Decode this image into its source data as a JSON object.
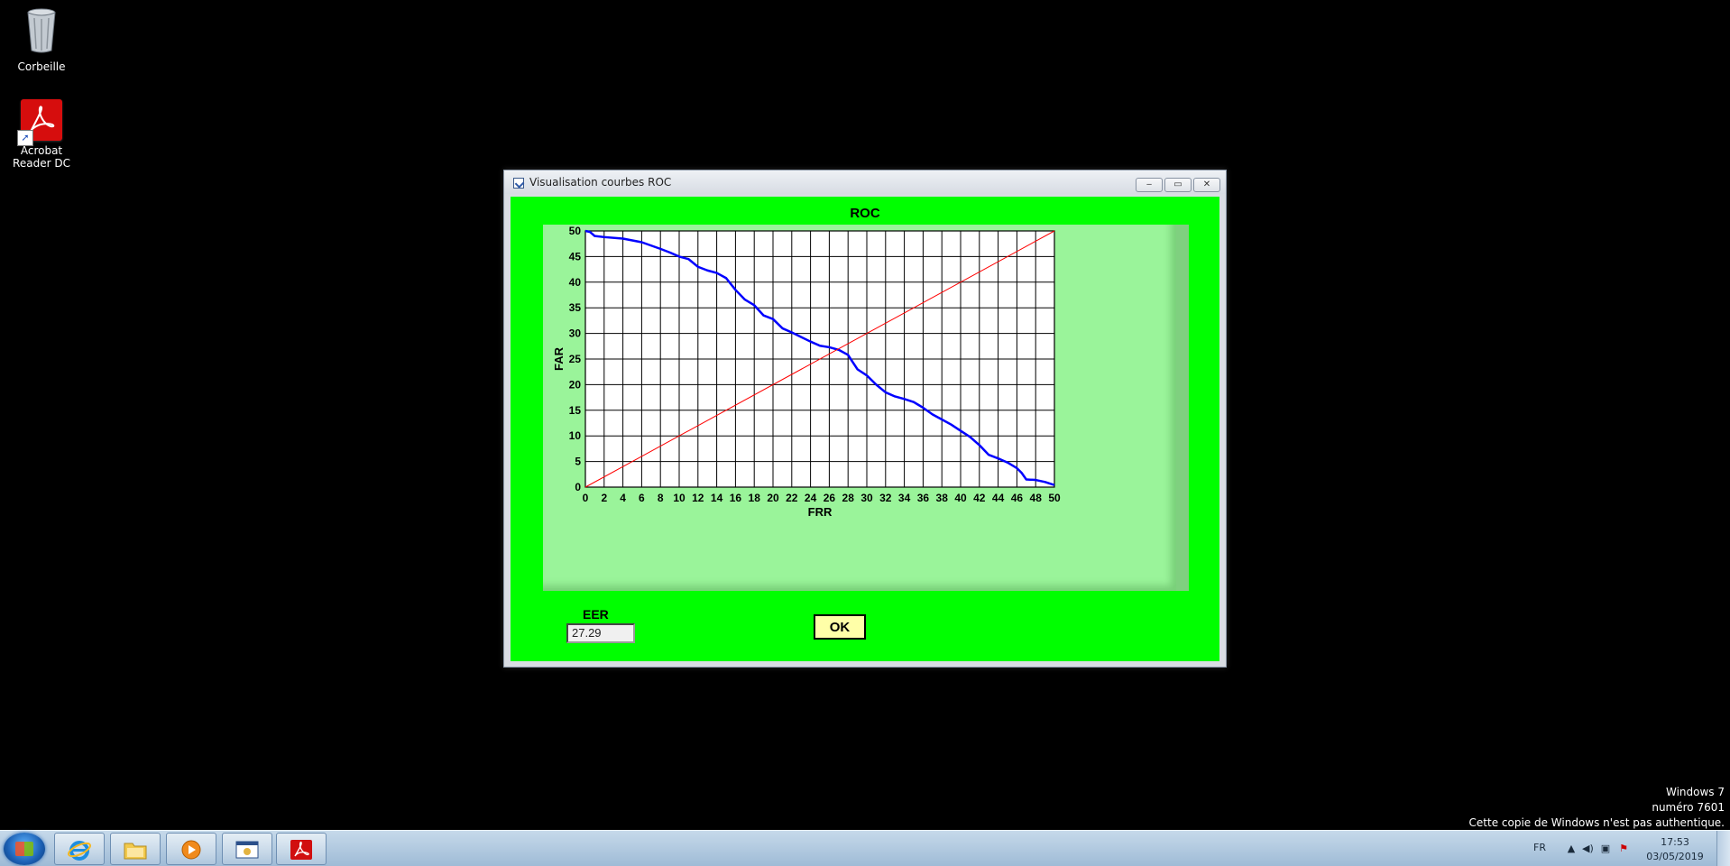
{
  "desktop": {
    "icons": [
      {
        "label": "Corbeille",
        "icon": "recycle-bin-icon"
      },
      {
        "label": "Acrobat Reader DC",
        "icon": "acrobat-reader-icon"
      }
    ]
  },
  "window": {
    "title": "Visualisation courbes ROC",
    "controls": {
      "minimize": "‒",
      "maximize": "▭",
      "close": "✕"
    },
    "background_color": "#00ff00",
    "plot_panel_color": "#9af49a"
  },
  "chart_data": {
    "type": "line",
    "title": "ROC",
    "xlabel": "FRR",
    "ylabel": "FAR",
    "xlim": [
      0,
      50
    ],
    "ylim": [
      0,
      50
    ],
    "xticks": [
      0,
      2,
      4,
      6,
      8,
      10,
      12,
      14,
      16,
      18,
      20,
      22,
      24,
      26,
      28,
      30,
      32,
      34,
      36,
      38,
      40,
      42,
      44,
      46,
      48,
      50
    ],
    "yticks": [
      0,
      5,
      10,
      15,
      20,
      25,
      30,
      35,
      40,
      45,
      50
    ],
    "grid": true,
    "series": [
      {
        "color": "#0000ff",
        "x": [
          0,
          0.5,
          1,
          2,
          4,
          6,
          8,
          9,
          10,
          11,
          12,
          13,
          14,
          15,
          16,
          17,
          18,
          19,
          20,
          21,
          22,
          23,
          24,
          25,
          26,
          27,
          28,
          28.5,
          29,
          30,
          31,
          32,
          33,
          34,
          35,
          36,
          37,
          38,
          39,
          40,
          41,
          42,
          43,
          44,
          45,
          46,
          46.5,
          47,
          48,
          49,
          50
        ],
        "y": [
          50,
          49.8,
          49,
          48.8,
          48.5,
          47.8,
          46.5,
          45.8,
          45,
          44.5,
          43,
          42.3,
          41.8,
          40.8,
          38.5,
          36.6,
          35.5,
          33.5,
          32.8,
          31,
          30.2,
          29.3,
          28.4,
          27.6,
          27.3,
          26.8,
          25.8,
          24.4,
          23,
          21.8,
          20,
          18.5,
          17.7,
          17.2,
          16.6,
          15.5,
          14.2,
          13.2,
          12.2,
          11,
          9.8,
          8.2,
          6.3,
          5.6,
          4.8,
          3.7,
          2.8,
          1.5,
          1.4,
          1,
          0.4
        ]
      },
      {
        "color": "#ff0000",
        "x": [
          0,
          50
        ],
        "y": [
          0,
          50
        ]
      }
    ]
  },
  "eer": {
    "label": "EER",
    "value": "27.29"
  },
  "ok_button": {
    "label": "OK"
  },
  "watermark": {
    "line1": "Windows 7",
    "line2": "numéro 7601",
    "line3": "Cette copie de Windows n'est pas authentique."
  },
  "taskbar": {
    "items": [
      {
        "name": "internet-explorer",
        "icon": "internet-explorer-icon"
      },
      {
        "name": "file-explorer",
        "icon": "folder-icon"
      },
      {
        "name": "media-player",
        "icon": "media-player-icon"
      },
      {
        "name": "roc-app",
        "icon": "application-window-icon"
      },
      {
        "name": "acrobat-reader",
        "icon": "acrobat-reader-icon"
      }
    ],
    "tray": {
      "language": "FR",
      "time": "17:53",
      "date": "03/05/2019"
    }
  }
}
